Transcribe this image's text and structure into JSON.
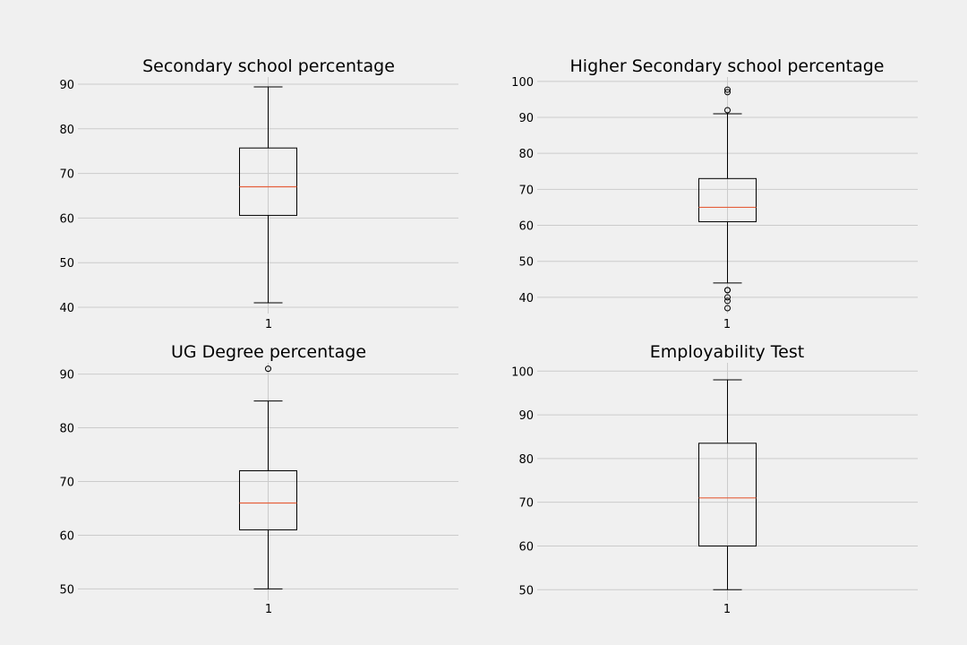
{
  "chart_data": [
    {
      "type": "box",
      "title": "Secondary school percentage",
      "category": "1",
      "yticks": [
        40,
        50,
        60,
        70,
        80,
        90
      ],
      "ylim": [
        38.6,
        91.6
      ],
      "whisker_low": 41,
      "q1": 60.6,
      "median": 67,
      "q3": 75.7,
      "whisker_high": 89.4,
      "outliers": []
    },
    {
      "type": "box",
      "title": "Higher Secondary school percentage",
      "category": "1",
      "yticks": [
        40,
        50,
        60,
        70,
        80,
        90,
        100
      ],
      "ylim": [
        35.5,
        101.2
      ],
      "whisker_low": 44,
      "q1": 61,
      "median": 65,
      "q3": 73,
      "whisker_high": 91,
      "outliers": [
        37,
        39,
        40,
        42,
        42,
        92,
        97,
        97.7
      ]
    },
    {
      "type": "box",
      "title": "UG Degree percentage",
      "category": "1",
      "yticks": [
        50,
        60,
        70,
        80,
        90
      ],
      "ylim": [
        47.9,
        92.1
      ],
      "whisker_low": 50,
      "q1": 61,
      "median": 66,
      "q3": 72,
      "whisker_high": 85,
      "outliers": [
        91
      ]
    },
    {
      "type": "box",
      "title": "Employability Test",
      "category": "1",
      "yticks": [
        50,
        60,
        70,
        80,
        90,
        100
      ],
      "ylim": [
        47.6,
        101.9
      ],
      "whisker_low": 50,
      "q1": 60,
      "median": 71,
      "q3": 83.5,
      "whisker_high": 98,
      "outliers": []
    }
  ]
}
